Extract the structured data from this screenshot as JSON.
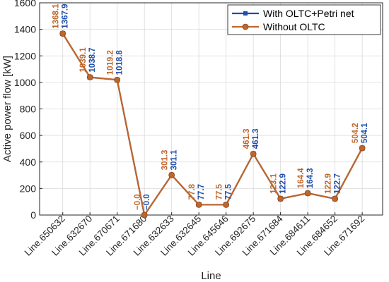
{
  "chart_data": {
    "type": "line",
    "title": "",
    "xlabel": "Line",
    "ylabel": "Active power flow [kW]",
    "categories": [
      "Line.650632",
      "Line.632670",
      "Line.670671",
      "Line.671680",
      "Line.632633",
      "Line.632645",
      "Line.645646",
      "Line.692675",
      "Line.671684",
      "Line.684611",
      "Line.684652",
      "Line.671692"
    ],
    "ylim": [
      0,
      1600
    ],
    "yticks": [
      0,
      200,
      400,
      600,
      800,
      1000,
      1200,
      1400,
      1600
    ],
    "grid": true,
    "legend_position": "top-right",
    "series": [
      {
        "name": "With OLTC+Petri net",
        "color": "#1f4eaa",
        "marker": "square",
        "values": [
          1367.9,
          1038.7,
          1018.8,
          -0.0,
          301.1,
          77.7,
          77.5,
          461.3,
          122.9,
          164.3,
          122.7,
          504.1
        ],
        "labels": [
          "1367.9",
          "1038.7",
          "1018.8",
          "−0.0",
          "301.1",
          "77.7",
          "77.5",
          "461.3",
          "122.9",
          "164.3",
          "122.7",
          "504.1"
        ]
      },
      {
        "name": "Without OLTC",
        "color": "#c0662a",
        "marker": "circle",
        "values": [
          1368.1,
          1039.1,
          1019.2,
          -0.0,
          301.3,
          77.8,
          77.5,
          461.3,
          123.1,
          164.4,
          122.9,
          504.2
        ],
        "labels": [
          "1368.1",
          "1039.1",
          "1019.2",
          "−0.0",
          "301.3",
          "77.8",
          "77.5",
          "461.3",
          "123.1",
          "164.4",
          "122.9",
          "504.2"
        ]
      }
    ]
  }
}
